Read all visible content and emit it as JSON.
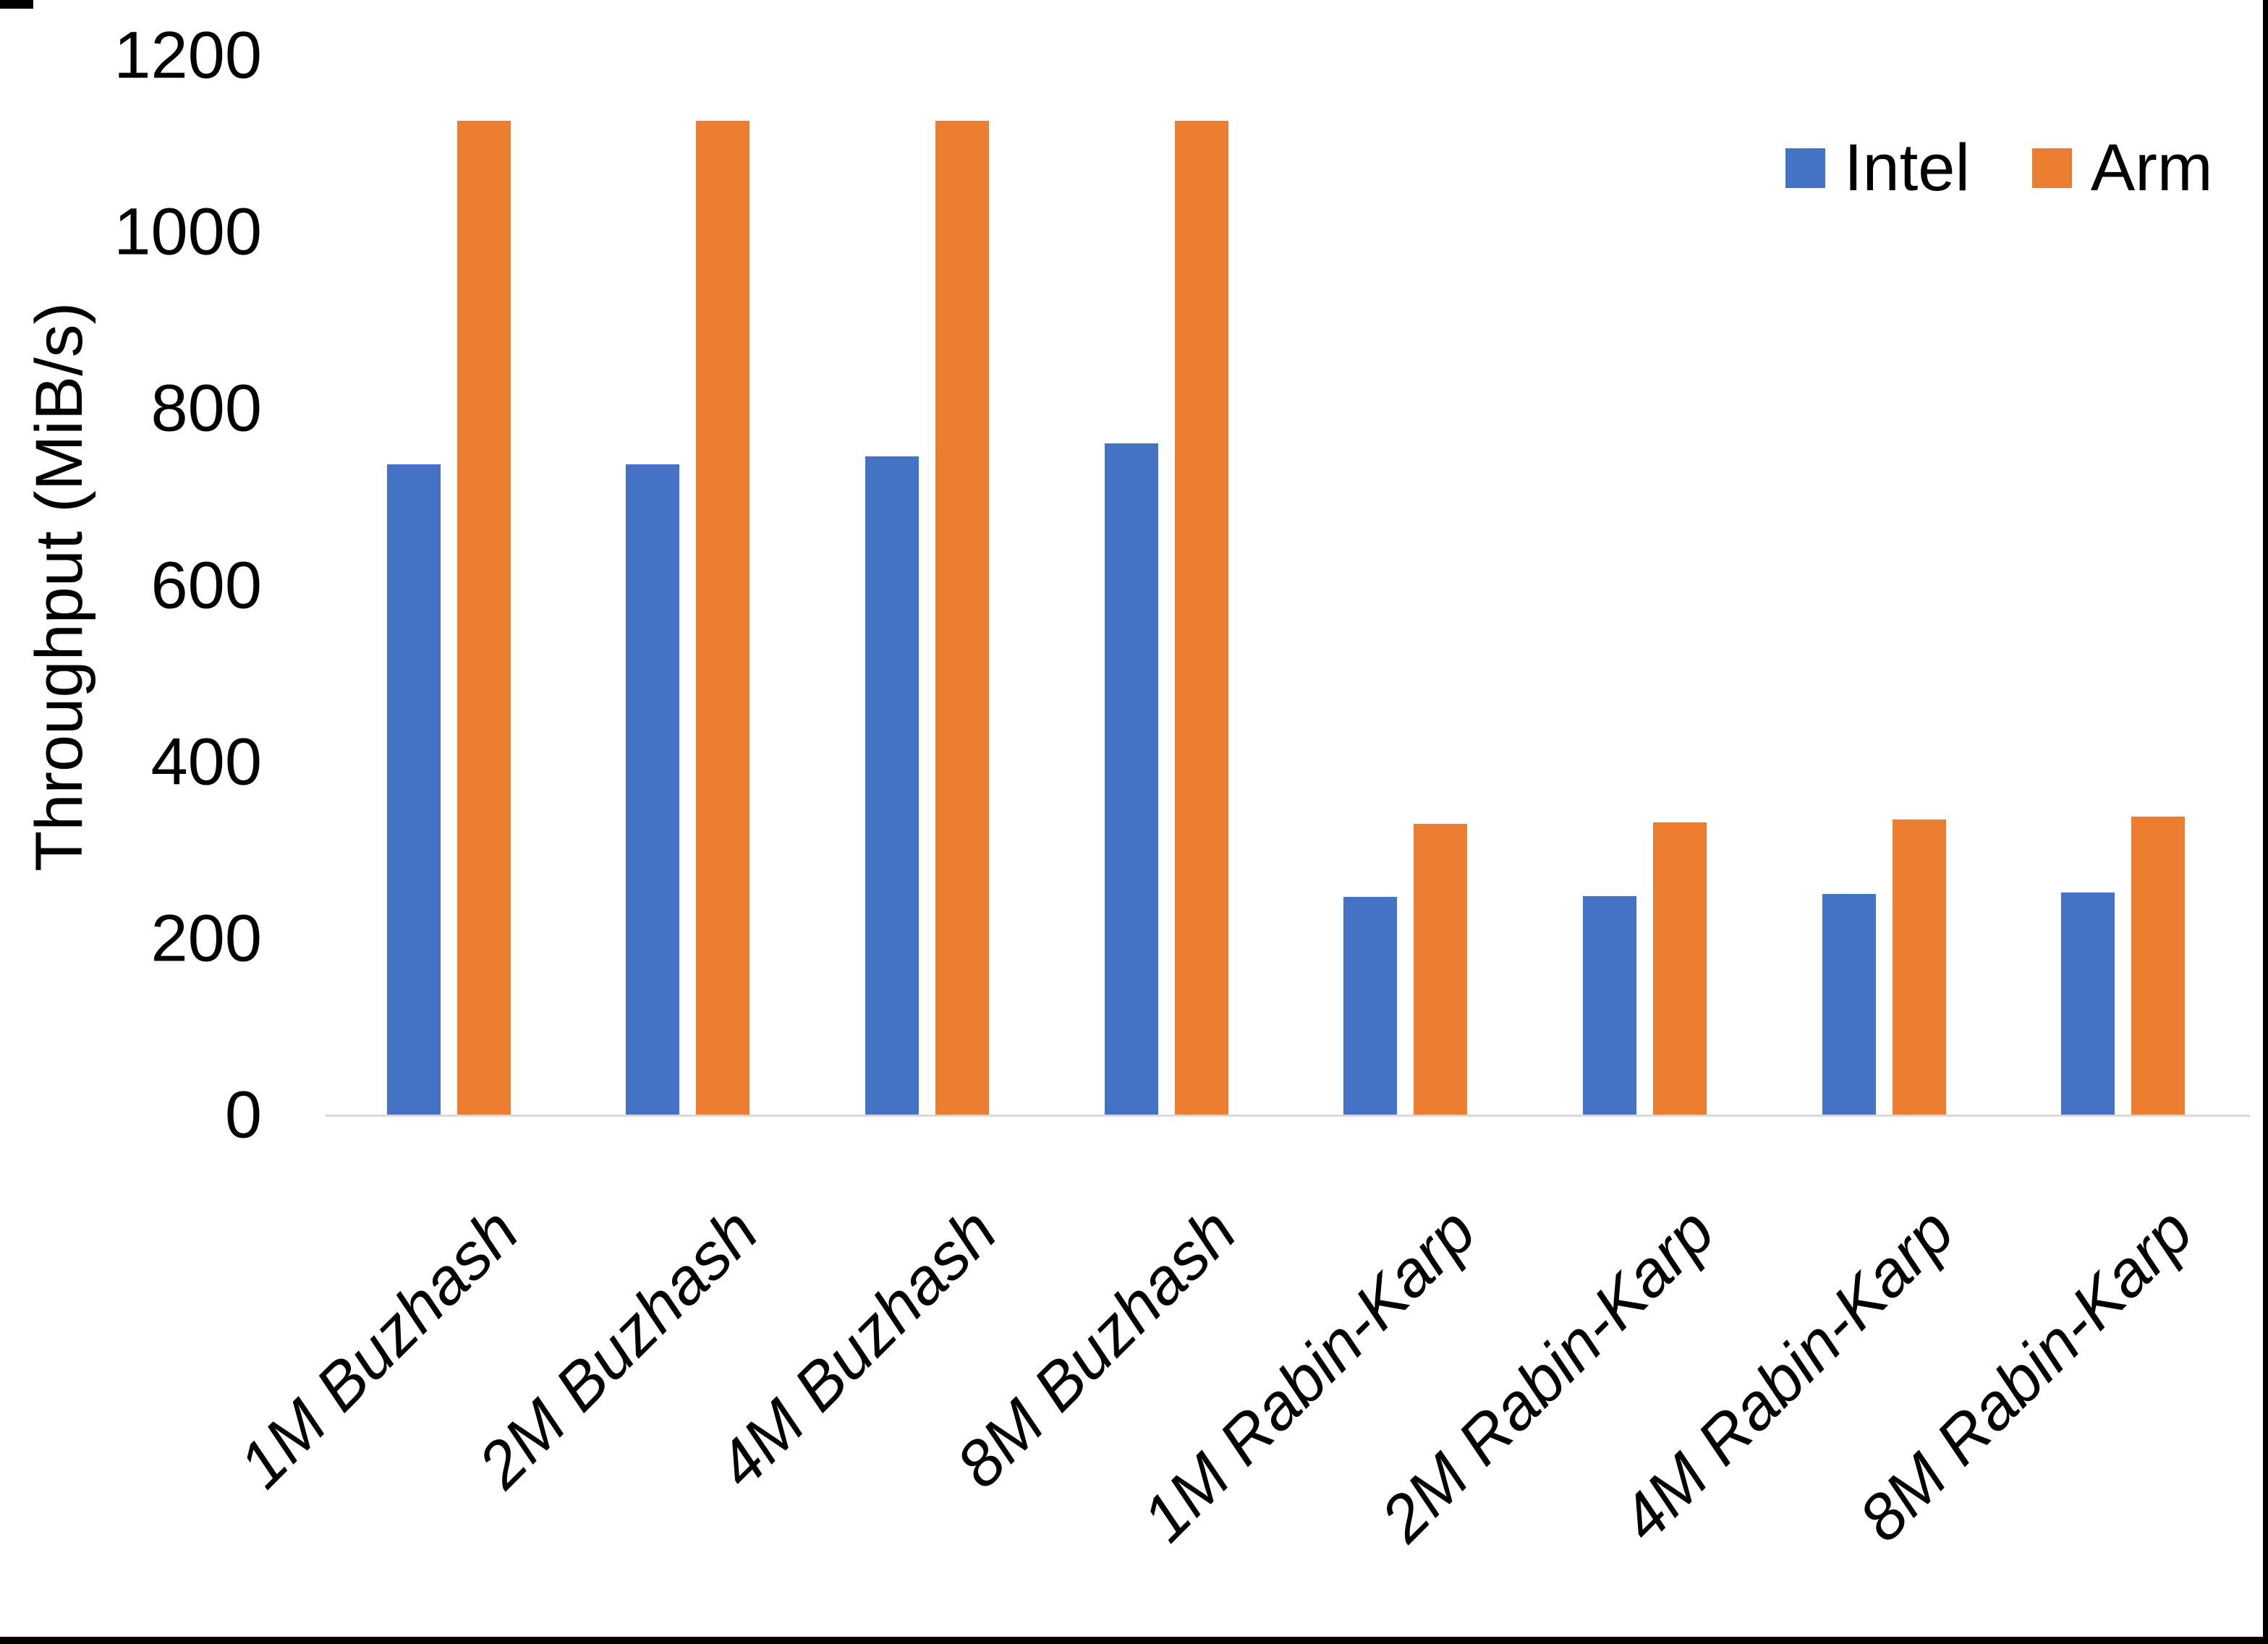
{
  "chart_data": {
    "type": "bar",
    "title": "",
    "xlabel": "",
    "ylabel": "Throughput (MiB/s)",
    "ylim": [
      0,
      1200
    ],
    "y_tick_step": 200,
    "y_ticks": [
      1200,
      1000,
      800,
      600,
      400,
      200,
      0
    ],
    "grid": false,
    "legend_position": "top-right",
    "categories": [
      "1M Buzhash",
      "2M Buzhash",
      "4M Buzhash",
      "8M Buzhash",
      "1M Rabin-Karp",
      "2M Rabin-Karp",
      "4M Rabin-Karp",
      "8M Rabin-Karp"
    ],
    "series": [
      {
        "name": "Intel",
        "color": "#4472C4",
        "values": [
          737,
          737,
          746,
          761,
          247,
          248,
          251,
          252
        ]
      },
      {
        "name": "Arm",
        "color": "#ED7D31",
        "values": [
          1126,
          1126,
          1126,
          1126,
          330,
          332,
          335,
          338
        ]
      }
    ],
    "axis_line_color": "#D9D9D9",
    "text_color": "#000000"
  }
}
